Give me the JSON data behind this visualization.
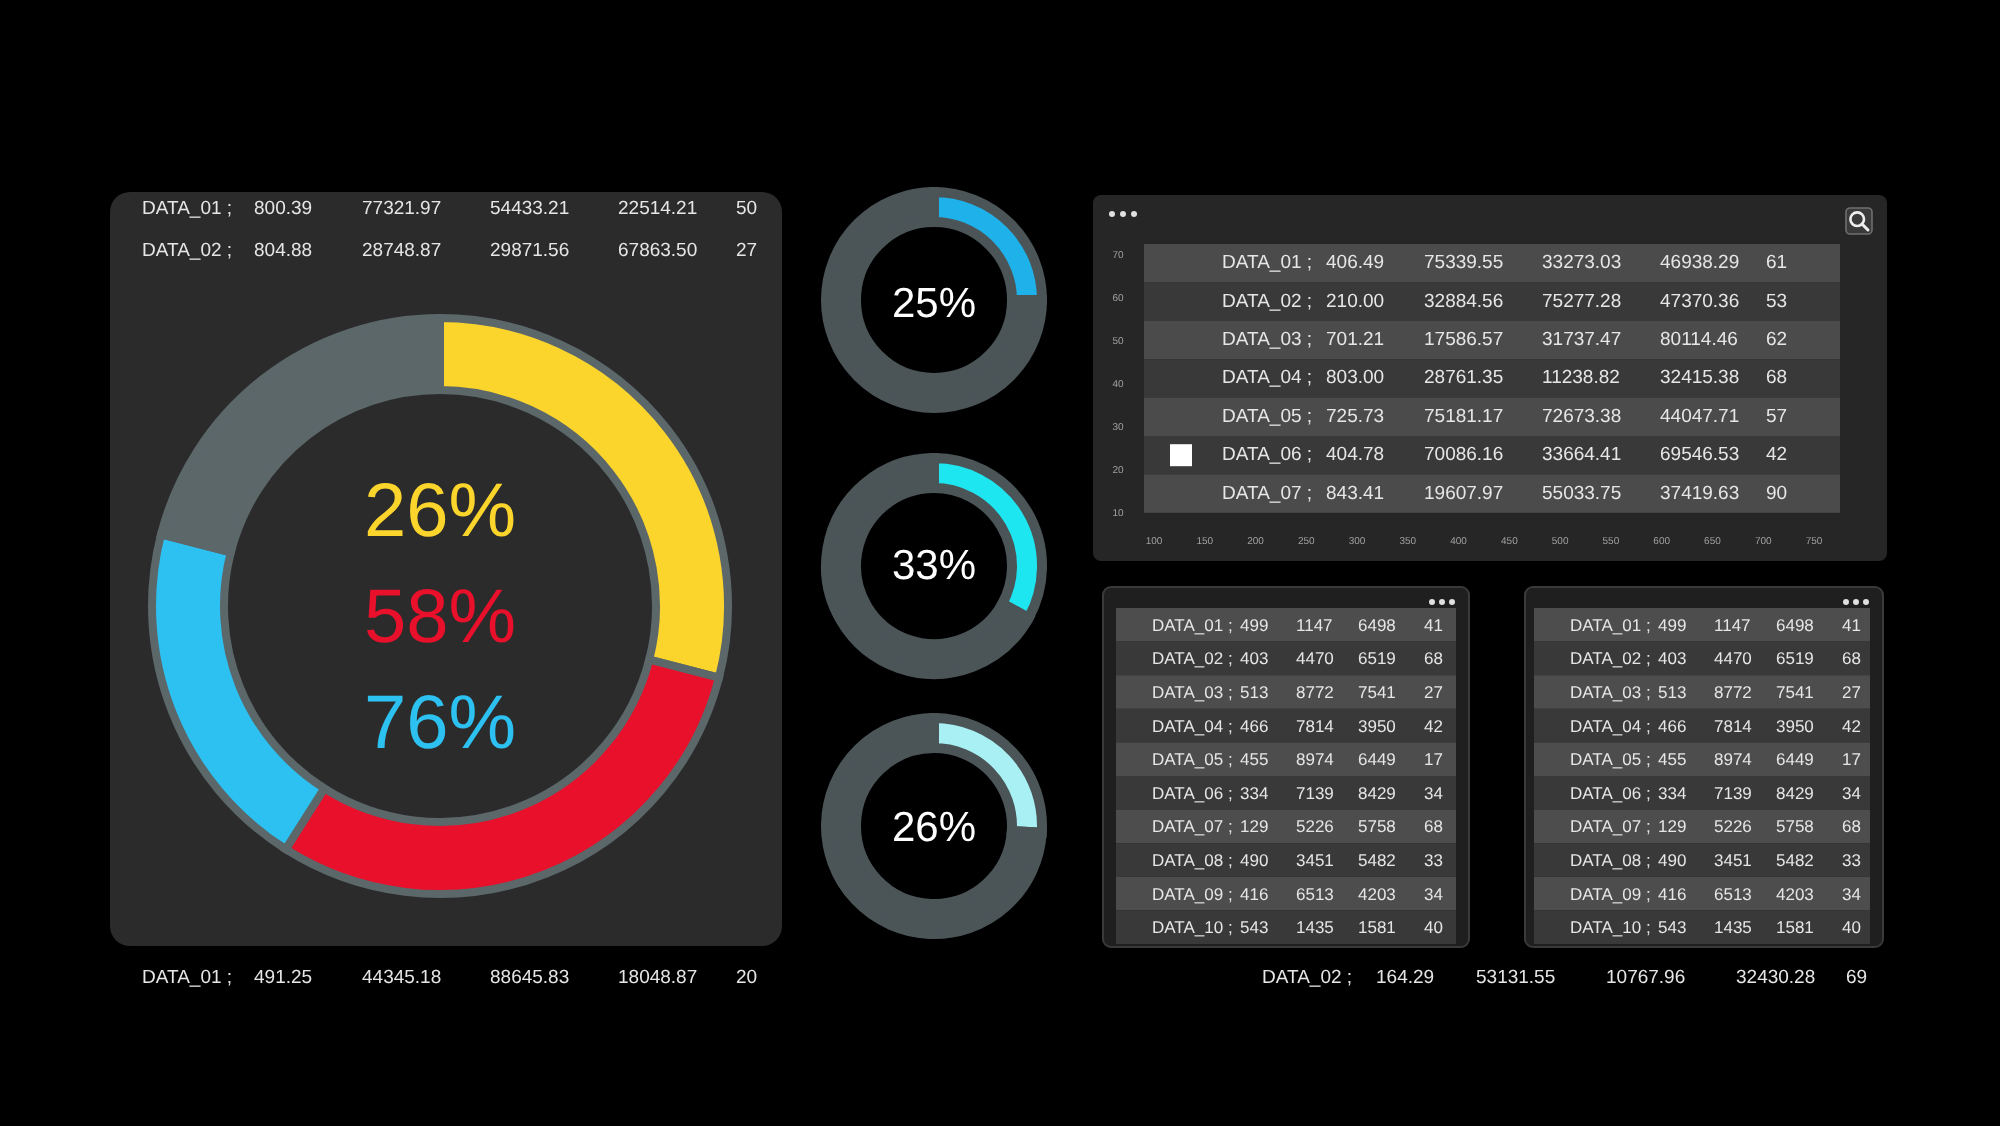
{
  "chart_data": [
    {
      "type": "other",
      "annotations": [
        "DATA_01 ;",
        "800.39",
        "77321.97",
        "54433.21",
        "22514.21",
        "50",
        "DATA_02 ;",
        "804.88",
        "28748.87",
        "29871.56",
        "67863.50",
        "27"
      ]
    },
    {
      "type": "donut",
      "categories": [
        null,
        null,
        null,
        null
      ],
      "values": [
        29,
        30,
        20,
        21
      ],
      "colors": [
        "#fbd52c",
        "#e8102b",
        "#2cc1f0",
        "#5c676a"
      ],
      "annotations": [
        "26%",
        "58%",
        "76%"
      ]
    },
    {
      "type": "other",
      "annotations": [
        "DATA_01 ;",
        "491.25",
        "44345.18",
        "88645.83",
        "18048.87",
        "20"
      ]
    },
    {
      "type": "donut",
      "categories": [
        null,
        null
      ],
      "values": [
        25,
        75
      ],
      "colors": [
        "#1fb2ea",
        "#4b5558"
      ],
      "annotations": [
        "25%"
      ]
    },
    {
      "type": "donut",
      "categories": [
        null,
        null
      ],
      "values": [
        33,
        67
      ],
      "colors": [
        "#1ee6f1",
        "#4b5558"
      ],
      "annotations": [
        "33%"
      ]
    },
    {
      "type": "donut",
      "categories": [
        null,
        null
      ],
      "values": [
        26,
        74
      ],
      "colors": [
        "#a9f0f4",
        "#4b5558"
      ],
      "annotations": [
        "26%"
      ]
    },
    {
      "type": "scatter",
      "xlim": [
        100,
        750
      ],
      "xticks": [
        100,
        150,
        200,
        250,
        300,
        350,
        400,
        450,
        500,
        550,
        600,
        650,
        700,
        750
      ],
      "ylim": [
        10,
        70
      ],
      "yticks": [
        10,
        20,
        30,
        40,
        50,
        60,
        70
      ]
    },
    {
      "type": "other",
      "annotations": [
        "DATA_01 ;",
        "406.49",
        "75339.55",
        "33273.03",
        "46938.29",
        "61",
        "DATA_02 ;",
        "210.00",
        "32884.56",
        "75277.28",
        "47370.36",
        "53",
        "DATA_03 ;",
        "701.21",
        "17586.57",
        "31737.47",
        "80114.46",
        "62",
        "DATA_04 ;",
        "803.00",
        "28761.35",
        "11238.82",
        "32415.38",
        "68",
        "DATA_05 ;",
        "725.73",
        "75181.17",
        "72673.38",
        "44047.71",
        "57",
        "DATA_06 ;",
        "404.78",
        "70086.16",
        "33664.41",
        "69546.53",
        "42",
        "DATA_07 ;",
        "843.41",
        "19607.97",
        "55033.75",
        "37419.63",
        "90"
      ]
    },
    {
      "type": "other",
      "annotations": [
        "DATA_01 ;",
        "499",
        "1147",
        "6498",
        "41",
        "DATA_02 ;",
        "403",
        "4470",
        "6519",
        "68",
        "DATA_03 ;",
        "513",
        "8772",
        "7541",
        "27",
        "DATA_04 ;",
        "466",
        "7814",
        "3950",
        "42",
        "DATA_05 ;",
        "455",
        "8974",
        "6449",
        "17",
        "DATA_06 ;",
        "334",
        "7139",
        "8429",
        "34",
        "DATA_07 ;",
        "129",
        "5226",
        "5758",
        "68",
        "DATA_08 ;",
        "490",
        "3451",
        "5482",
        "33",
        "DATA_09 ;",
        "416",
        "6513",
        "4203",
        "34",
        "DATA_10 ;",
        "543",
        "1435",
        "1581",
        "40"
      ]
    },
    {
      "type": "other",
      "annotations": [
        "DATA_01 ;",
        "499",
        "1147",
        "6498",
        "41",
        "DATA_02 ;",
        "403",
        "4470",
        "6519",
        "68",
        "DATA_03 ;",
        "513",
        "8772",
        "7541",
        "27",
        "DATA_04 ;",
        "466",
        "7814",
        "3950",
        "42",
        "DATA_05 ;",
        "455",
        "8974",
        "6449",
        "17",
        "DATA_06 ;",
        "334",
        "7139",
        "8429",
        "34",
        "DATA_07 ;",
        "129",
        "5226",
        "5758",
        "68",
        "DATA_08 ;",
        "490",
        "3451",
        "5482",
        "33",
        "DATA_09 ;",
        "416",
        "6513",
        "4203",
        "34",
        "DATA_10 ;",
        "543",
        "1435",
        "1581",
        "40"
      ]
    },
    {
      "type": "other",
      "annotations": [
        "DATA_02 ;",
        "164.29",
        "53131.55",
        "10767.96",
        "32430.28",
        "69"
      ]
    }
  ]
}
